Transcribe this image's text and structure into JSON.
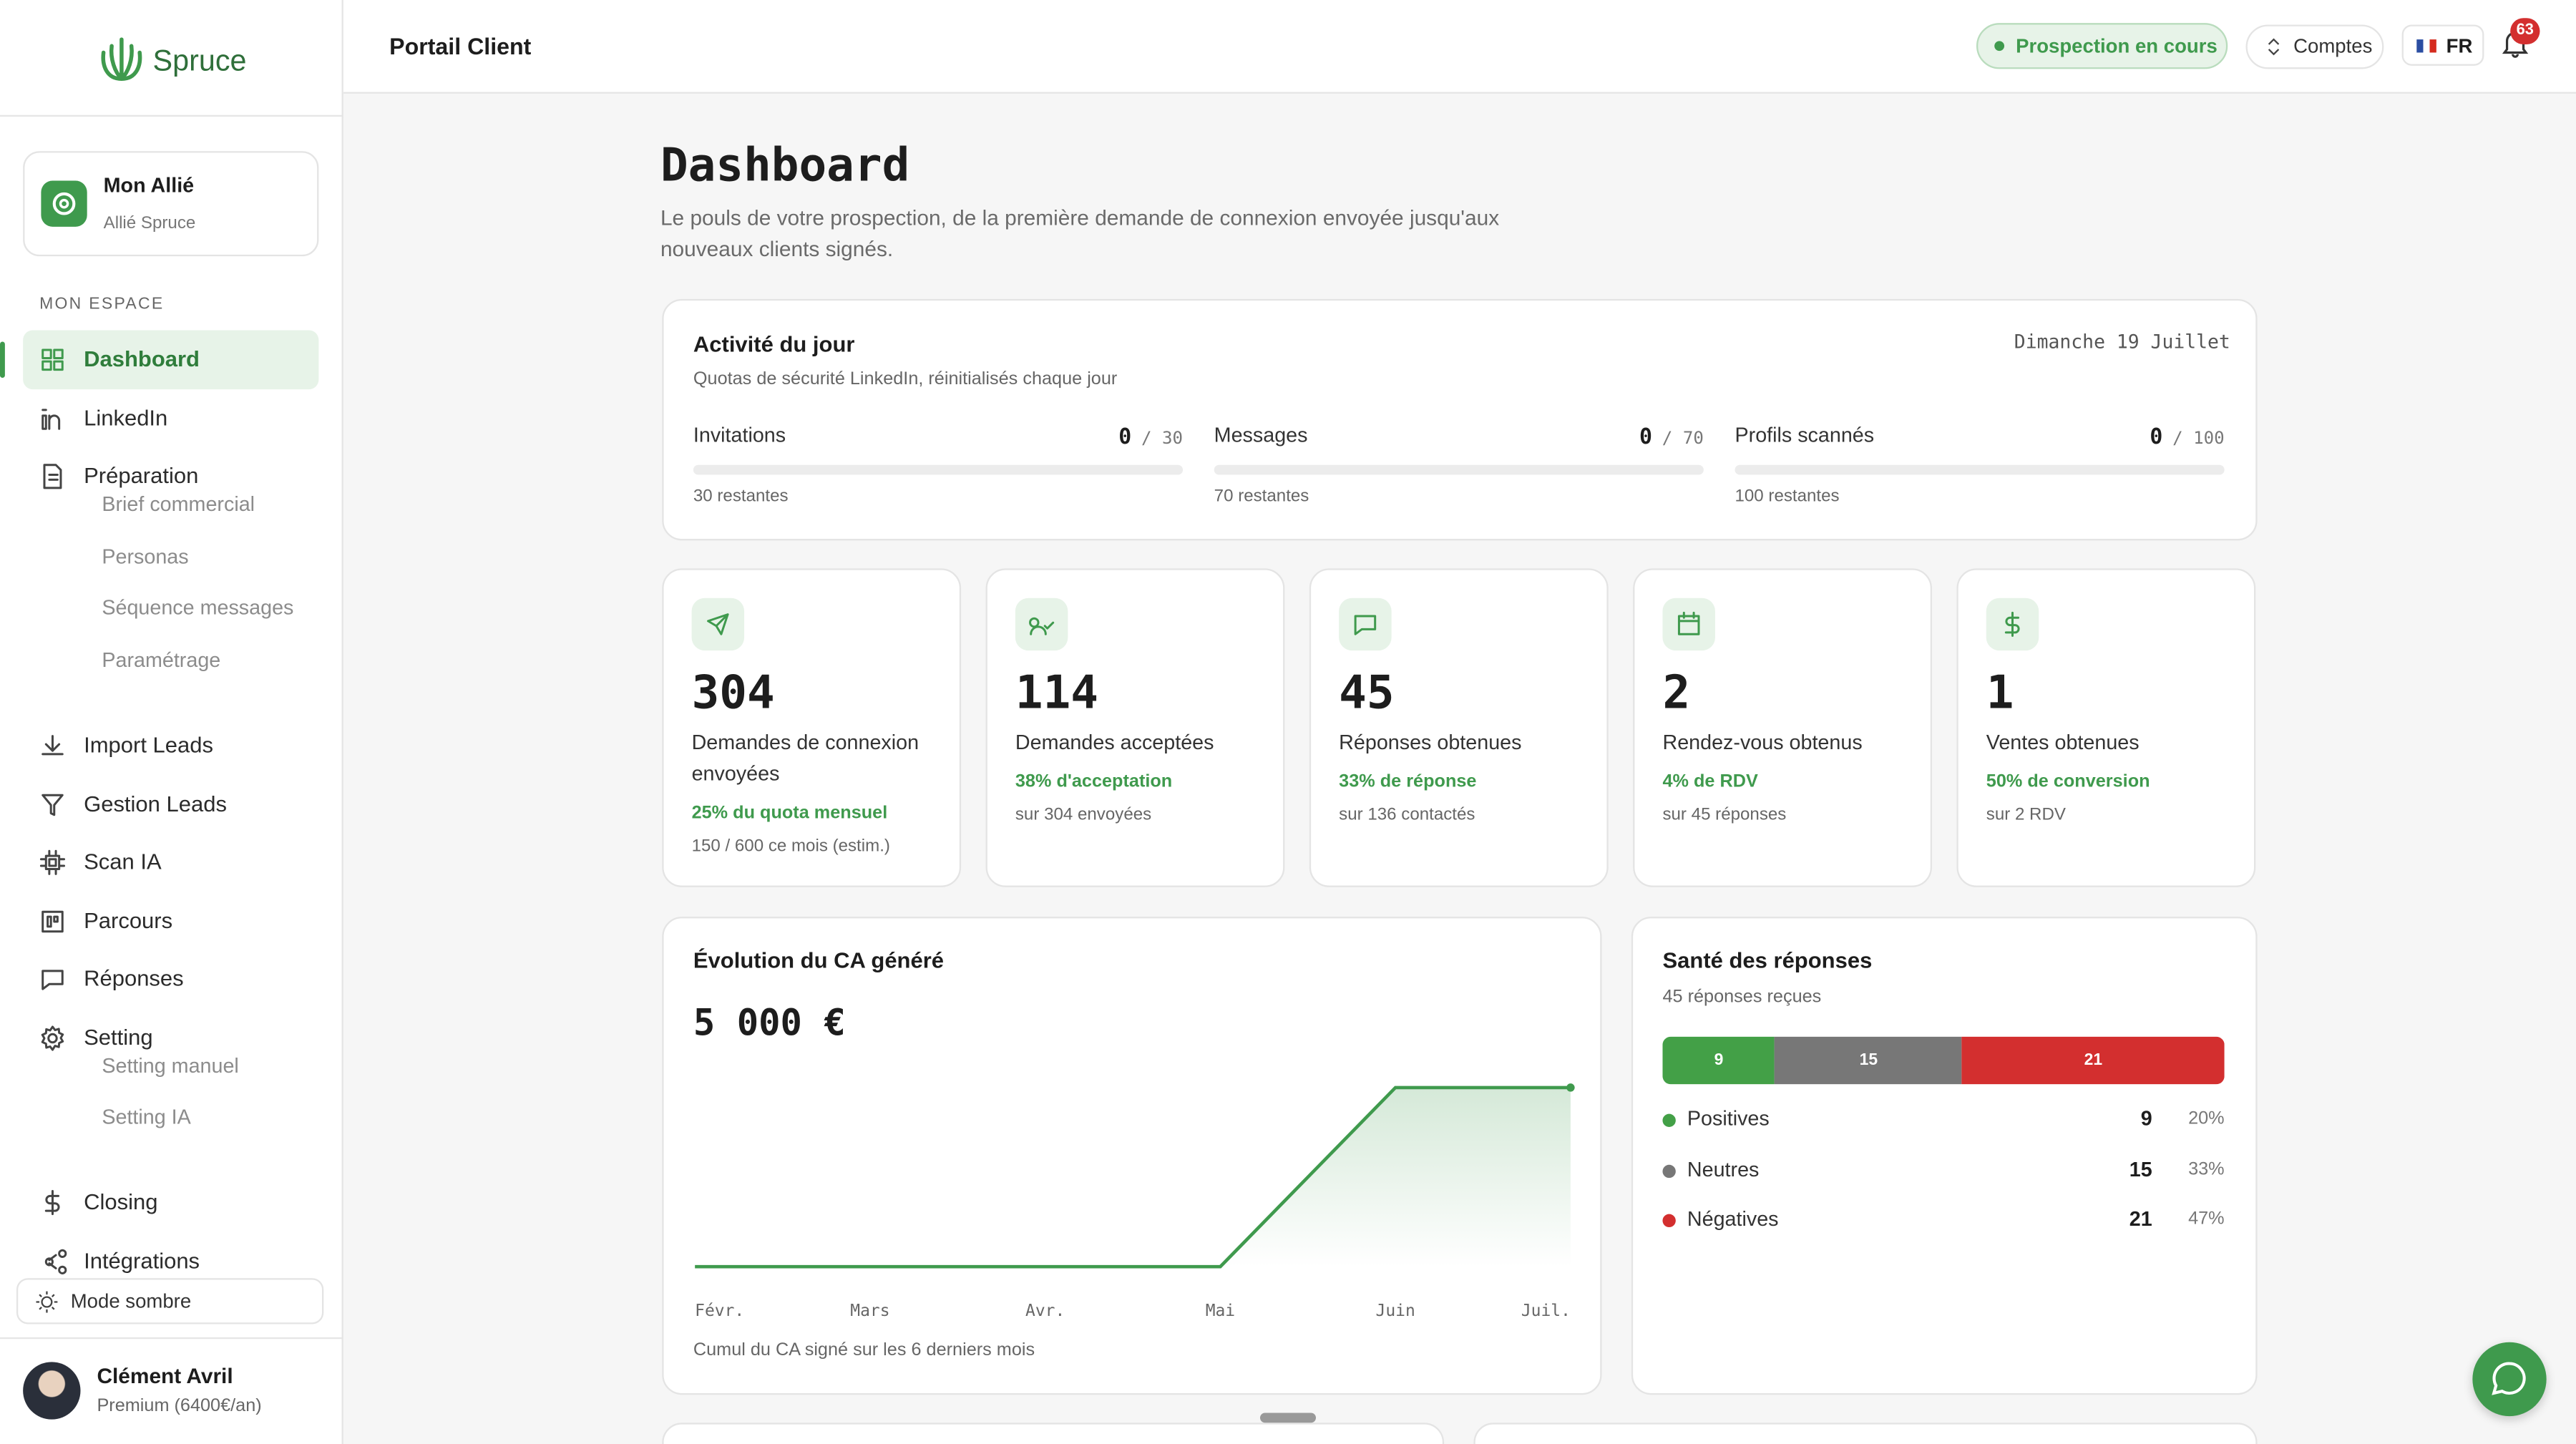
{
  "sidebar": {
    "brand": "Spruce",
    "ally": {
      "title": "Mon Allié",
      "subtitle": "Allié Spruce"
    },
    "section": "MON ESPACE",
    "nav": [
      {
        "label": "Dashboard"
      },
      {
        "label": "LinkedIn"
      },
      {
        "label": "Préparation",
        "children": [
          "Brief commercial",
          "Personas",
          "Séquence messages",
          "Paramétrage"
        ]
      },
      {
        "label": "Import Leads"
      },
      {
        "label": "Gestion Leads"
      },
      {
        "label": "Scan IA"
      },
      {
        "label": "Parcours"
      },
      {
        "label": "Réponses"
      },
      {
        "label": "Setting",
        "children": [
          "Setting manuel",
          "Setting IA"
        ]
      },
      {
        "label": "Closing"
      },
      {
        "label": "Intégrations"
      }
    ],
    "dark_mode": "Mode sombre",
    "user": {
      "name": "Clément Avril",
      "plan": "Premium (6400€/an)"
    }
  },
  "header": {
    "title": "Portail Client",
    "status": "Prospection en cours",
    "accounts": "Comptes",
    "language": "FR",
    "notifications": 63
  },
  "page": {
    "title": "Dashboard",
    "subtitle": "Le pouls de votre prospection, de la première demande de connexion envoyée jusqu'aux nouveaux clients signés."
  },
  "activity": {
    "title": "Activité du jour",
    "subtitle": "Quotas de sécurité LinkedIn, réinitialisés chaque jour",
    "date": "Dimanche 19 Juillet",
    "items": [
      {
        "label": "Invitations",
        "used": 0,
        "quota": {
          "value": 30,
          "label": "/ 30"
        },
        "remaining": "30 restantes"
      },
      {
        "label": "Messages",
        "used": 0,
        "quota": {
          "value": 70,
          "label": "/ 70"
        },
        "remaining": "70 restantes"
      },
      {
        "label": "Profils scannés",
        "used": 0,
        "quota": {
          "value": 100,
          "label": "/ 100"
        },
        "remaining": "100 restantes"
      }
    ]
  },
  "kpis": [
    {
      "value": 304,
      "label": "Demandes de connexion envoyées",
      "rate": "25% du quota mensuel",
      "detail": "150 / 600 ce mois (estim.)"
    },
    {
      "value": 114,
      "label": "Demandes acceptées",
      "rate": "38% d'acceptation",
      "detail": "sur 304 envoyées"
    },
    {
      "value": 45,
      "label": "Réponses obtenues",
      "rate": "33% de réponse",
      "detail": "sur 136 contactés"
    },
    {
      "value": 2,
      "label": "Rendez-vous obtenus",
      "rate": "4% de RDV",
      "detail": "sur 45 réponses"
    },
    {
      "value": 1,
      "label": "Ventes obtenues",
      "rate": "50% de conversion",
      "detail": "sur 2 RDV"
    }
  ],
  "revenue": {
    "title": "Évolution du CA généré",
    "total": "5 000 €",
    "months": [
      "Févr.",
      "Mars",
      "Avr.",
      "Mai",
      "Juin",
      "Juil."
    ],
    "values": [
      0,
      0,
      0,
      0,
      5000,
      5000
    ],
    "color": "#3f9a4d",
    "caption": "Cumul du CA signé sur les 6 derniers mois"
  },
  "health": {
    "title": "Santé des réponses",
    "subtitle": "45 réponses reçues",
    "segments": [
      {
        "name": "Positives",
        "value": 9,
        "share": "20%",
        "color": "#43a047"
      },
      {
        "name": "Neutres",
        "value": 15,
        "share": "33%",
        "color": "#777777"
      },
      {
        "name": "Négatives",
        "value": 21,
        "share": "47%",
        "color": "#d32f2f"
      }
    ]
  }
}
